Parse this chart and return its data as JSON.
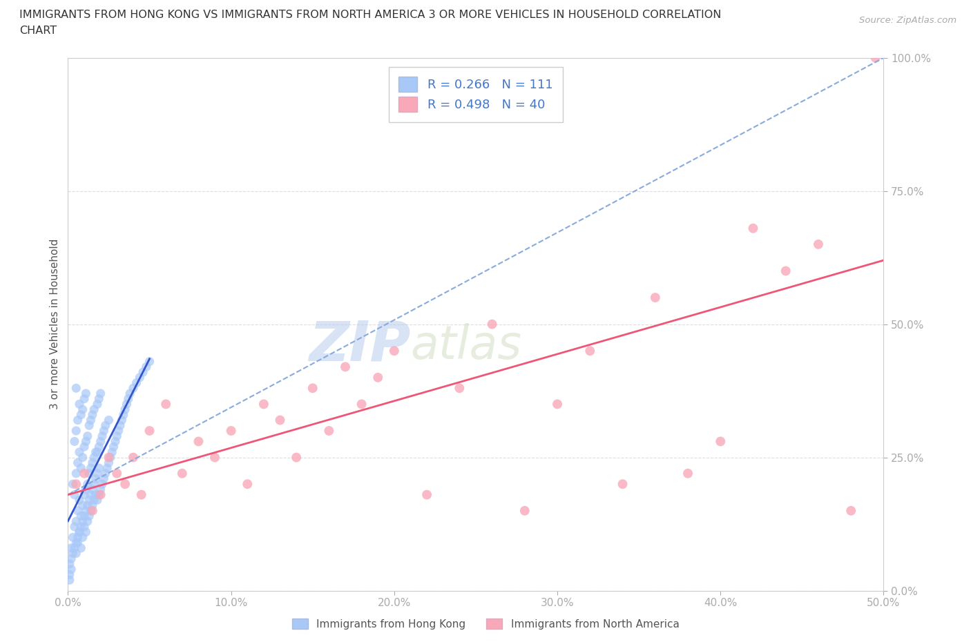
{
  "title_line1": "IMMIGRANTS FROM HONG KONG VS IMMIGRANTS FROM NORTH AMERICA 3 OR MORE VEHICLES IN HOUSEHOLD CORRELATION",
  "title_line2": "CHART",
  "source_text": "Source: ZipAtlas.com",
  "ylabel": "3 or more Vehicles in Household",
  "xlim": [
    0.0,
    0.5
  ],
  "ylim": [
    0.0,
    1.0
  ],
  "xticks": [
    0.0,
    0.1,
    0.2,
    0.3,
    0.4,
    0.5
  ],
  "yticks": [
    0.0,
    0.25,
    0.5,
    0.75,
    1.0
  ],
  "xticklabels": [
    "0.0%",
    "10.0%",
    "20.0%",
    "30.0%",
    "40.0%",
    "50.0%"
  ],
  "yticklabels": [
    "0.0%",
    "25.0%",
    "50.0%",
    "75.0%",
    "100.0%"
  ],
  "hk_color": "#a8c8f8",
  "na_color": "#f8a8b8",
  "hk_line_color": "#3355cc",
  "na_line_color": "#ee5577",
  "dashed_line_color": "#88aadd",
  "hk_R": 0.266,
  "hk_N": 111,
  "na_R": 0.498,
  "na_N": 40,
  "watermark_zip": "ZIP",
  "watermark_atlas": "atlas",
  "legend1_label": "Immigrants from Hong Kong",
  "legend2_label": "Immigrants from North America",
  "hk_scatter_x": [
    0.001,
    0.002,
    0.003,
    0.003,
    0.004,
    0.004,
    0.004,
    0.005,
    0.005,
    0.005,
    0.005,
    0.005,
    0.006,
    0.006,
    0.006,
    0.006,
    0.007,
    0.007,
    0.007,
    0.007,
    0.008,
    0.008,
    0.008,
    0.008,
    0.009,
    0.009,
    0.009,
    0.009,
    0.01,
    0.01,
    0.01,
    0.01,
    0.011,
    0.011,
    0.011,
    0.011,
    0.012,
    0.012,
    0.012,
    0.013,
    0.013,
    0.013,
    0.014,
    0.014,
    0.014,
    0.015,
    0.015,
    0.015,
    0.016,
    0.016,
    0.016,
    0.017,
    0.017,
    0.018,
    0.018,
    0.018,
    0.019,
    0.019,
    0.019,
    0.02,
    0.02,
    0.02,
    0.021,
    0.021,
    0.022,
    0.022,
    0.023,
    0.023,
    0.024,
    0.025,
    0.025,
    0.026,
    0.027,
    0.028,
    0.029,
    0.03,
    0.031,
    0.032,
    0.033,
    0.034,
    0.035,
    0.036,
    0.037,
    0.038,
    0.04,
    0.042,
    0.044,
    0.046,
    0.048,
    0.05,
    0.001,
    0.001,
    0.002,
    0.002,
    0.003,
    0.004,
    0.005,
    0.006,
    0.007,
    0.008,
    0.009,
    0.01,
    0.011,
    0.012,
    0.013,
    0.014,
    0.015,
    0.016,
    0.017,
    0.018,
    0.019
  ],
  "hk_scatter_y": [
    0.05,
    0.08,
    0.1,
    0.2,
    0.12,
    0.18,
    0.28,
    0.07,
    0.13,
    0.22,
    0.3,
    0.38,
    0.09,
    0.15,
    0.24,
    0.32,
    0.11,
    0.17,
    0.26,
    0.35,
    0.08,
    0.14,
    0.23,
    0.33,
    0.1,
    0.16,
    0.25,
    0.34,
    0.12,
    0.18,
    0.27,
    0.36,
    0.11,
    0.19,
    0.28,
    0.37,
    0.13,
    0.2,
    0.29,
    0.14,
    0.22,
    0.31,
    0.15,
    0.23,
    0.32,
    0.16,
    0.24,
    0.33,
    0.17,
    0.25,
    0.34,
    0.18,
    0.26,
    0.17,
    0.26,
    0.35,
    0.18,
    0.27,
    0.36,
    0.19,
    0.28,
    0.37,
    0.2,
    0.29,
    0.21,
    0.3,
    0.22,
    0.31,
    0.23,
    0.24,
    0.32,
    0.25,
    0.26,
    0.27,
    0.28,
    0.29,
    0.3,
    0.31,
    0.32,
    0.33,
    0.34,
    0.35,
    0.36,
    0.37,
    0.38,
    0.39,
    0.4,
    0.41,
    0.42,
    0.43,
    0.02,
    0.03,
    0.04,
    0.06,
    0.07,
    0.08,
    0.09,
    0.1,
    0.11,
    0.12,
    0.13,
    0.14,
    0.15,
    0.16,
    0.17,
    0.18,
    0.19,
    0.2,
    0.21,
    0.22,
    0.23
  ],
  "na_scatter_x": [
    0.005,
    0.01,
    0.015,
    0.02,
    0.025,
    0.03,
    0.035,
    0.04,
    0.045,
    0.05,
    0.06,
    0.07,
    0.08,
    0.09,
    0.1,
    0.11,
    0.12,
    0.13,
    0.14,
    0.15,
    0.16,
    0.17,
    0.18,
    0.19,
    0.2,
    0.22,
    0.24,
    0.26,
    0.28,
    0.3,
    0.32,
    0.34,
    0.36,
    0.38,
    0.4,
    0.42,
    0.44,
    0.46,
    0.48,
    0.495
  ],
  "na_scatter_y": [
    0.2,
    0.22,
    0.15,
    0.18,
    0.25,
    0.22,
    0.2,
    0.25,
    0.18,
    0.3,
    0.35,
    0.22,
    0.28,
    0.25,
    0.3,
    0.2,
    0.35,
    0.32,
    0.25,
    0.38,
    0.3,
    0.42,
    0.35,
    0.4,
    0.45,
    0.18,
    0.38,
    0.5,
    0.15,
    0.35,
    0.45,
    0.2,
    0.55,
    0.22,
    0.28,
    0.68,
    0.6,
    0.65,
    0.15,
    1.0
  ],
  "na_line_intercept": 0.18,
  "na_line_slope": 0.88,
  "hk_dashed_intercept": 0.18,
  "hk_dashed_slope": 1.64,
  "background_color": "#ffffff",
  "grid_color": "#dddddd",
  "title_color": "#333333",
  "axis_label_color": "#555555",
  "tick_color_x": "#888888",
  "tick_color_y": "#4477cc",
  "legend_text_color": "#4477cc"
}
